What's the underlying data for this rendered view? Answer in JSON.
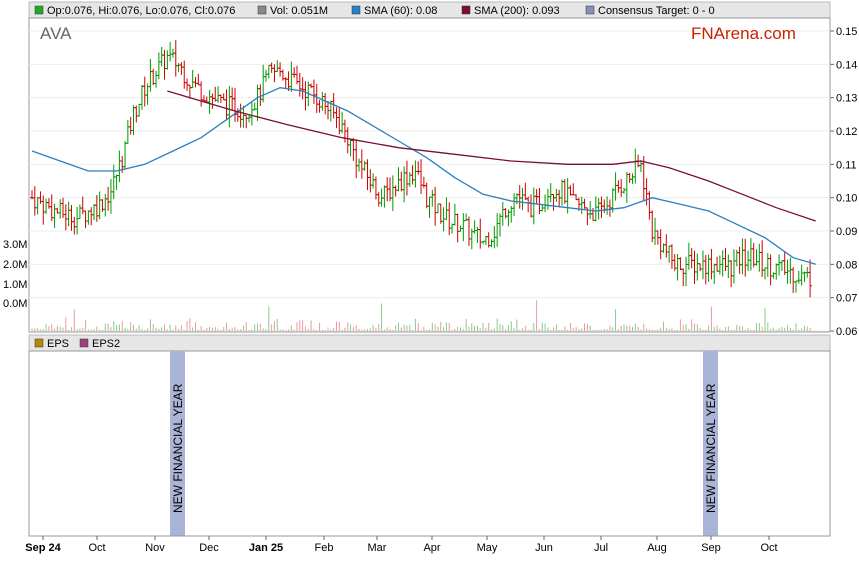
{
  "legend": {
    "ohlc": "Op:0.076, Hi:0.076, Lo:0.076, Cl:0.076",
    "vol": "Vol: 0.051M",
    "sma60": "SMA (60): 0.08",
    "sma200": "SMA (200): 0.093",
    "consensus": "Consensus Target: 0 - 0"
  },
  "ticker": "AVA",
  "brand": "FNArena.com",
  "eps_legend": {
    "eps": "EPS",
    "eps2": "EPS2"
  },
  "colors": {
    "up": "#009900",
    "down": "#cc0000",
    "sma60": "#2a7fc0",
    "sma200": "#7a1030",
    "brand": "#cc2200",
    "ticker": "#666666",
    "fy_band": "#aab4d6",
    "legend_bg": "#e6e6e6"
  },
  "chart_data": [
    {
      "type": "candlestick",
      "title": "AVA",
      "y_axis_ticks": [
        "0.15",
        "0.14",
        "0.13",
        "0.12",
        "0.11",
        "0.10",
        "0.09",
        "0.08",
        "0.07",
        "0.06"
      ],
      "ylim": [
        0.06,
        0.155
      ],
      "x_axis_labels": [
        "Sep 24",
        "Oct",
        "Nov",
        "Dec",
        "Jan 25",
        "Feb",
        "Mar",
        "Apr",
        "May",
        "Jun",
        "Jul",
        "Aug",
        "Sep",
        "Oct"
      ],
      "close_series": [
        [
          0,
          0.1
        ],
        [
          4,
          0.098
        ],
        [
          8,
          0.096
        ],
        [
          12,
          0.095
        ],
        [
          16,
          0.094
        ],
        [
          20,
          0.096
        ],
        [
          24,
          0.098
        ],
        [
          28,
          0.102
        ],
        [
          32,
          0.112
        ],
        [
          36,
          0.125
        ],
        [
          40,
          0.133
        ],
        [
          44,
          0.138
        ],
        [
          48,
          0.142
        ],
        [
          52,
          0.14
        ],
        [
          56,
          0.135
        ],
        [
          60,
          0.132
        ],
        [
          64,
          0.13
        ],
        [
          68,
          0.128
        ],
        [
          72,
          0.127
        ],
        [
          76,
          0.126
        ],
        [
          80,
          0.13
        ],
        [
          84,
          0.137
        ],
        [
          88,
          0.138
        ],
        [
          92,
          0.135
        ],
        [
          96,
          0.133
        ],
        [
          100,
          0.131
        ],
        [
          104,
          0.128
        ],
        [
          108,
          0.124
        ],
        [
          112,
          0.118
        ],
        [
          116,
          0.11
        ],
        [
          120,
          0.105
        ],
        [
          124,
          0.1
        ],
        [
          128,
          0.103
        ],
        [
          132,
          0.106
        ],
        [
          136,
          0.108
        ],
        [
          140,
          0.1
        ],
        [
          144,
          0.096
        ],
        [
          148,
          0.093
        ],
        [
          152,
          0.092
        ],
        [
          156,
          0.089
        ],
        [
          160,
          0.087
        ],
        [
          164,
          0.09
        ],
        [
          168,
          0.097
        ],
        [
          172,
          0.101
        ],
        [
          176,
          0.097
        ],
        [
          180,
          0.098
        ],
        [
          184,
          0.103
        ],
        [
          188,
          0.102
        ],
        [
          192,
          0.098
        ],
        [
          196,
          0.097
        ],
        [
          200,
          0.095
        ],
        [
          204,
          0.098
        ],
        [
          208,
          0.103
        ],
        [
          212,
          0.106
        ],
        [
          216,
          0.11
        ],
        [
          220,
          0.09
        ],
        [
          224,
          0.085
        ],
        [
          228,
          0.08
        ],
        [
          232,
          0.08
        ],
        [
          236,
          0.08
        ],
        [
          240,
          0.08
        ],
        [
          244,
          0.08
        ],
        [
          248,
          0.079
        ],
        [
          252,
          0.082
        ],
        [
          256,
          0.082
        ],
        [
          260,
          0.08
        ],
        [
          264,
          0.079
        ],
        [
          268,
          0.078
        ],
        [
          272,
          0.077
        ],
        [
          276,
          0.076
        ]
      ],
      "sma60_series": [
        [
          0,
          0.114
        ],
        [
          10,
          0.111
        ],
        [
          20,
          0.108
        ],
        [
          30,
          0.108
        ],
        [
          40,
          0.11
        ],
        [
          50,
          0.114
        ],
        [
          60,
          0.118
        ],
        [
          70,
          0.124
        ],
        [
          80,
          0.13
        ],
        [
          88,
          0.133
        ],
        [
          96,
          0.132
        ],
        [
          104,
          0.129
        ],
        [
          112,
          0.126
        ],
        [
          120,
          0.122
        ],
        [
          130,
          0.117
        ],
        [
          140,
          0.112
        ],
        [
          150,
          0.106
        ],
        [
          160,
          0.101
        ],
        [
          170,
          0.099
        ],
        [
          180,
          0.098
        ],
        [
          190,
          0.097
        ],
        [
          200,
          0.096
        ],
        [
          210,
          0.097
        ],
        [
          220,
          0.1
        ],
        [
          230,
          0.098
        ],
        [
          240,
          0.096
        ],
        [
          250,
          0.092
        ],
        [
          260,
          0.088
        ],
        [
          270,
          0.082
        ],
        [
          278,
          0.08
        ]
      ],
      "sma200_series": [
        [
          48,
          0.132
        ],
        [
          60,
          0.129
        ],
        [
          72,
          0.126
        ],
        [
          90,
          0.122
        ],
        [
          110,
          0.118
        ],
        [
          130,
          0.115
        ],
        [
          150,
          0.113
        ],
        [
          170,
          0.111
        ],
        [
          190,
          0.11
        ],
        [
          206,
          0.11
        ],
        [
          216,
          0.111
        ],
        [
          226,
          0.109
        ],
        [
          240,
          0.105
        ],
        [
          252,
          0.101
        ],
        [
          264,
          0.097
        ],
        [
          278,
          0.093
        ]
      ],
      "volume_axis_ticks": [
        "3.0M",
        "2.0M",
        "1.0M",
        "0.0M"
      ]
    },
    {
      "type": "bar",
      "series": [
        {
          "name": "EPS",
          "values": []
        },
        {
          "name": "EPS2",
          "values": []
        }
      ],
      "annotations": [
        "NEW FINANCIAL YEAR",
        "NEW FINANCIAL YEAR"
      ]
    }
  ]
}
